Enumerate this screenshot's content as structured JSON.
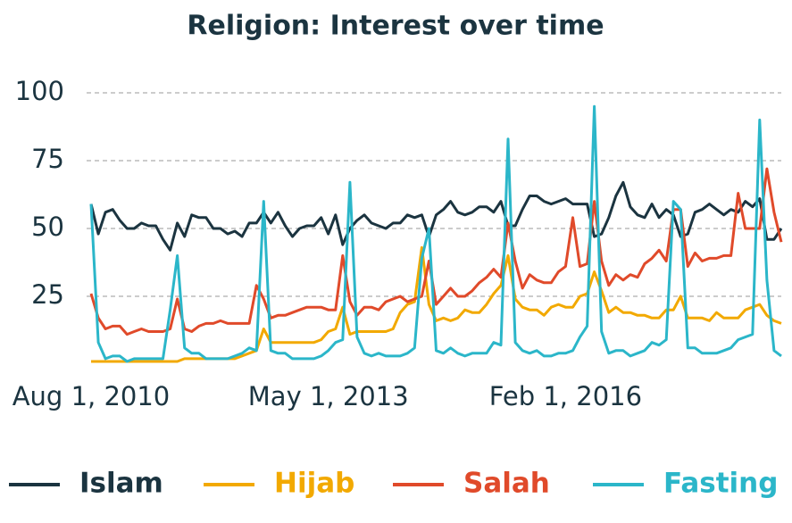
{
  "chart_data": {
    "type": "line",
    "title": "Religion: Interest over time",
    "x": [
      "2010-08-01",
      "2010-09-01",
      "2010-10-01",
      "2010-11-01",
      "2010-12-01",
      "2011-01-01",
      "2011-02-01",
      "2011-03-01",
      "2011-04-01",
      "2011-05-01",
      "2011-06-01",
      "2011-07-01",
      "2011-08-01",
      "2011-09-01",
      "2011-10-01",
      "2011-11-01",
      "2011-12-01",
      "2012-01-01",
      "2012-02-01",
      "2012-03-01",
      "2012-04-01",
      "2012-05-01",
      "2012-06-01",
      "2012-07-01",
      "2012-08-01",
      "2012-09-01",
      "2012-10-01",
      "2012-11-01",
      "2012-12-01",
      "2013-01-01",
      "2013-02-01",
      "2013-03-01",
      "2013-04-01",
      "2013-05-01",
      "2013-06-01",
      "2013-07-01",
      "2013-08-01",
      "2013-09-01",
      "2013-10-01",
      "2013-11-01",
      "2013-12-01",
      "2014-01-01",
      "2014-02-01",
      "2014-03-01",
      "2014-04-01",
      "2014-05-01",
      "2014-06-01",
      "2014-07-01",
      "2014-08-01",
      "2014-09-01",
      "2014-10-01",
      "2014-11-01",
      "2014-12-01",
      "2015-01-01",
      "2015-02-01",
      "2015-03-01",
      "2015-04-01",
      "2015-05-01",
      "2015-06-01",
      "2015-07-01",
      "2015-08-01",
      "2015-09-01",
      "2015-10-01",
      "2015-11-01",
      "2015-12-01",
      "2016-01-01",
      "2016-02-01",
      "2016-03-01",
      "2016-04-01",
      "2016-05-01",
      "2016-06-01",
      "2016-07-01",
      "2016-08-01",
      "2016-09-01",
      "2016-10-01",
      "2016-11-01",
      "2016-12-01",
      "2017-01-01",
      "2017-02-01",
      "2017-03-01",
      "2017-04-01",
      "2017-05-01",
      "2017-06-01",
      "2017-07-01",
      "2017-08-01",
      "2017-09-01",
      "2017-10-01",
      "2017-11-01",
      "2017-12-01",
      "2018-01-01",
      "2018-02-01",
      "2018-03-01",
      "2018-04-01",
      "2018-05-01",
      "2018-06-01",
      "2018-07-01",
      "2018-08-01"
    ],
    "series": [
      {
        "name": "Islam",
        "color": "#1b3440",
        "values": [
          59,
          48,
          56,
          57,
          53,
          50,
          50,
          52,
          51,
          51,
          46,
          42,
          52,
          47,
          55,
          54,
          54,
          50,
          50,
          48,
          49,
          47,
          52,
          52,
          56,
          52,
          56,
          51,
          47,
          50,
          51,
          51,
          54,
          48,
          55,
          44,
          50,
          53,
          55,
          52,
          51,
          50,
          52,
          52,
          55,
          54,
          55,
          47,
          55,
          57,
          60,
          56,
          55,
          56,
          58,
          58,
          56,
          60,
          51,
          51,
          57,
          62,
          62,
          60,
          59,
          60,
          61,
          59,
          59,
          59,
          47,
          48,
          54,
          62,
          67,
          58,
          55,
          54,
          59,
          54,
          57,
          55,
          47,
          48,
          56,
          57,
          59,
          57,
          55,
          57,
          56,
          60,
          58,
          61,
          46,
          46,
          50
        ]
      },
      {
        "name": "Hijab",
        "color": "#f2a900",
        "values": [
          1,
          1,
          1,
          1,
          1,
          1,
          1,
          1,
          1,
          1,
          1,
          1,
          1,
          2,
          2,
          2,
          2,
          2,
          2,
          2,
          2,
          3,
          4,
          5,
          13,
          8,
          8,
          8,
          8,
          8,
          8,
          8,
          9,
          12,
          13,
          21,
          11,
          12,
          12,
          12,
          12,
          12,
          13,
          19,
          22,
          23,
          43,
          22,
          16,
          17,
          16,
          17,
          20,
          19,
          19,
          22,
          26,
          29,
          40,
          24,
          21,
          20,
          20,
          18,
          21,
          22,
          21,
          21,
          25,
          26,
          34,
          27,
          19,
          21,
          19,
          19,
          18,
          18,
          17,
          17,
          20,
          20,
          25,
          17,
          17,
          17,
          16,
          19,
          17,
          17,
          17,
          20,
          21,
          22,
          18,
          16,
          15
        ]
      },
      {
        "name": "Salah",
        "color": "#e04a2a",
        "values": [
          26,
          17,
          13,
          14,
          14,
          11,
          12,
          13,
          12,
          12,
          12,
          13,
          24,
          13,
          12,
          14,
          15,
          15,
          16,
          15,
          15,
          15,
          15,
          29,
          24,
          17,
          18,
          18,
          19,
          20,
          21,
          21,
          21,
          20,
          20,
          40,
          23,
          18,
          21,
          21,
          20,
          23,
          24,
          25,
          23,
          24,
          25,
          38,
          22,
          25,
          28,
          25,
          25,
          27,
          30,
          32,
          35,
          32,
          52,
          38,
          28,
          33,
          31,
          30,
          30,
          34,
          36,
          54,
          36,
          37,
          60,
          38,
          29,
          33,
          31,
          33,
          32,
          37,
          39,
          42,
          38,
          57,
          57,
          36,
          41,
          38,
          39,
          39,
          40,
          40,
          63,
          50,
          50,
          50,
          72,
          56,
          45
        ]
      },
      {
        "name": "Fasting",
        "color": "#2bb6c9",
        "values": [
          59,
          8,
          2,
          3,
          3,
          1,
          2,
          2,
          2,
          2,
          2,
          20,
          40,
          6,
          4,
          4,
          2,
          2,
          2,
          2,
          3,
          4,
          6,
          5,
          60,
          5,
          4,
          4,
          2,
          2,
          2,
          2,
          3,
          5,
          8,
          9,
          67,
          10,
          4,
          3,
          4,
          3,
          3,
          3,
          4,
          6,
          39,
          50,
          5,
          4,
          6,
          4,
          3,
          4,
          4,
          4,
          8,
          7,
          83,
          8,
          5,
          4,
          5,
          3,
          3,
          4,
          4,
          5,
          10,
          14,
          95,
          12,
          4,
          5,
          5,
          3,
          4,
          5,
          8,
          7,
          9,
          60,
          57,
          6,
          6,
          4,
          4,
          4,
          5,
          6,
          9,
          10,
          11,
          90,
          31,
          5,
          3
        ]
      }
    ],
    "xlim": [
      "2010-08-01",
      "2018-08-01"
    ],
    "xticks": [
      {
        "value": "2010-08-01",
        "label": "Aug 1, 2010"
      },
      {
        "value": "2013-05-01",
        "label": "May 1, 2013"
      },
      {
        "value": "2016-02-01",
        "label": "Feb 1, 2016"
      }
    ],
    "ylim": [
      0,
      100
    ],
    "yticks": [
      25,
      50,
      75,
      100
    ],
    "grid": true,
    "legend": "bottom"
  }
}
